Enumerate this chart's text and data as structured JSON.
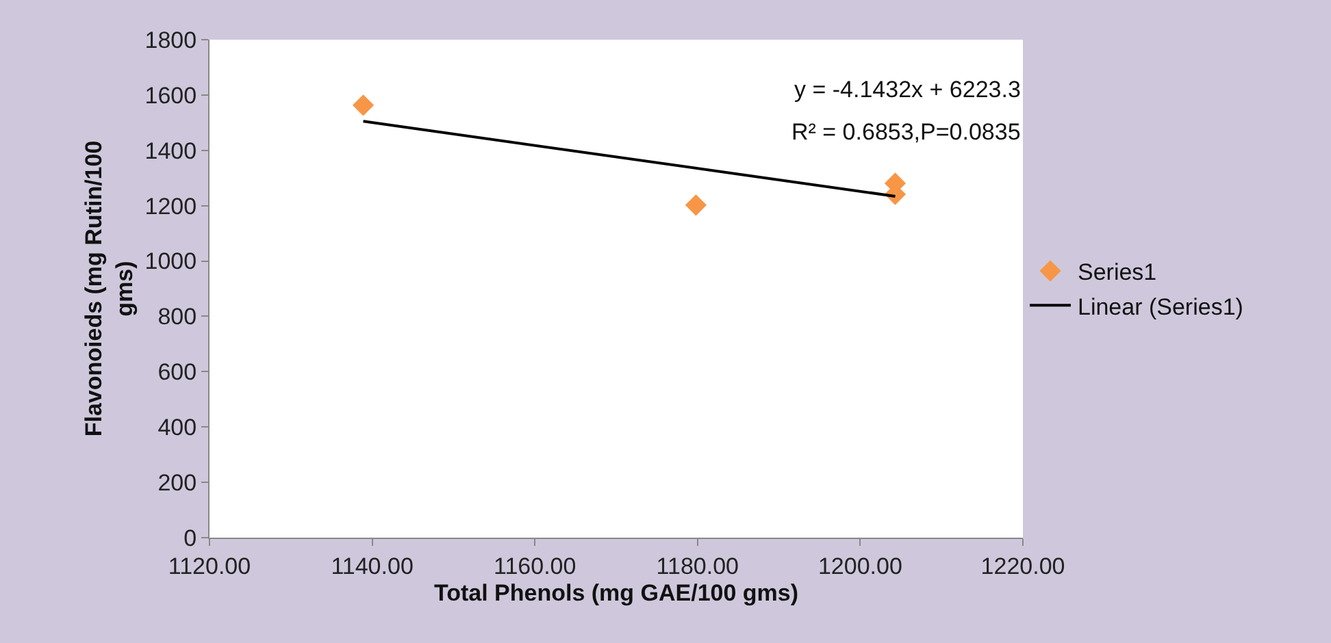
{
  "chart_data": {
    "type": "scatter",
    "xlabel": "Total Phenols (mg GAE/100 gms)",
    "ylabel": "Flavonoieds (mg Rutin/100 gms)",
    "series": [
      {
        "name": "Series1",
        "color": "#f79646",
        "marker": "diamond",
        "x": [
          1138.9,
          1179.8,
          1204.3,
          1204.3
        ],
        "values": [
          1563,
          1202,
          1281,
          1241
        ]
      },
      {
        "name": "Linear (Series1)",
        "type": "line",
        "color": "#000000",
        "marker": "none",
        "x": [
          1138.9,
          1204.3
        ],
        "values": [
          1505,
          1234
        ]
      }
    ],
    "annotations": [
      "y = -4.1432x + 6223.3",
      "R² = 0.6853,P=0.0835"
    ],
    "xlim": [
      1120,
      1220
    ],
    "xticks": [
      {
        "value": 1120,
        "label": "1120.00"
      },
      {
        "value": 1140,
        "label": "1140.00"
      },
      {
        "value": 1160,
        "label": "1160.00"
      },
      {
        "value": 1180,
        "label": "1180.00"
      },
      {
        "value": 1200,
        "label": "1200.00"
      },
      {
        "value": 1220,
        "label": "1220.00"
      }
    ],
    "ylim": [
      0,
      1800
    ],
    "yticks": [
      0,
      200,
      400,
      600,
      800,
      1000,
      1200,
      1400,
      1600,
      1800
    ],
    "grid": false,
    "legend": "right"
  }
}
